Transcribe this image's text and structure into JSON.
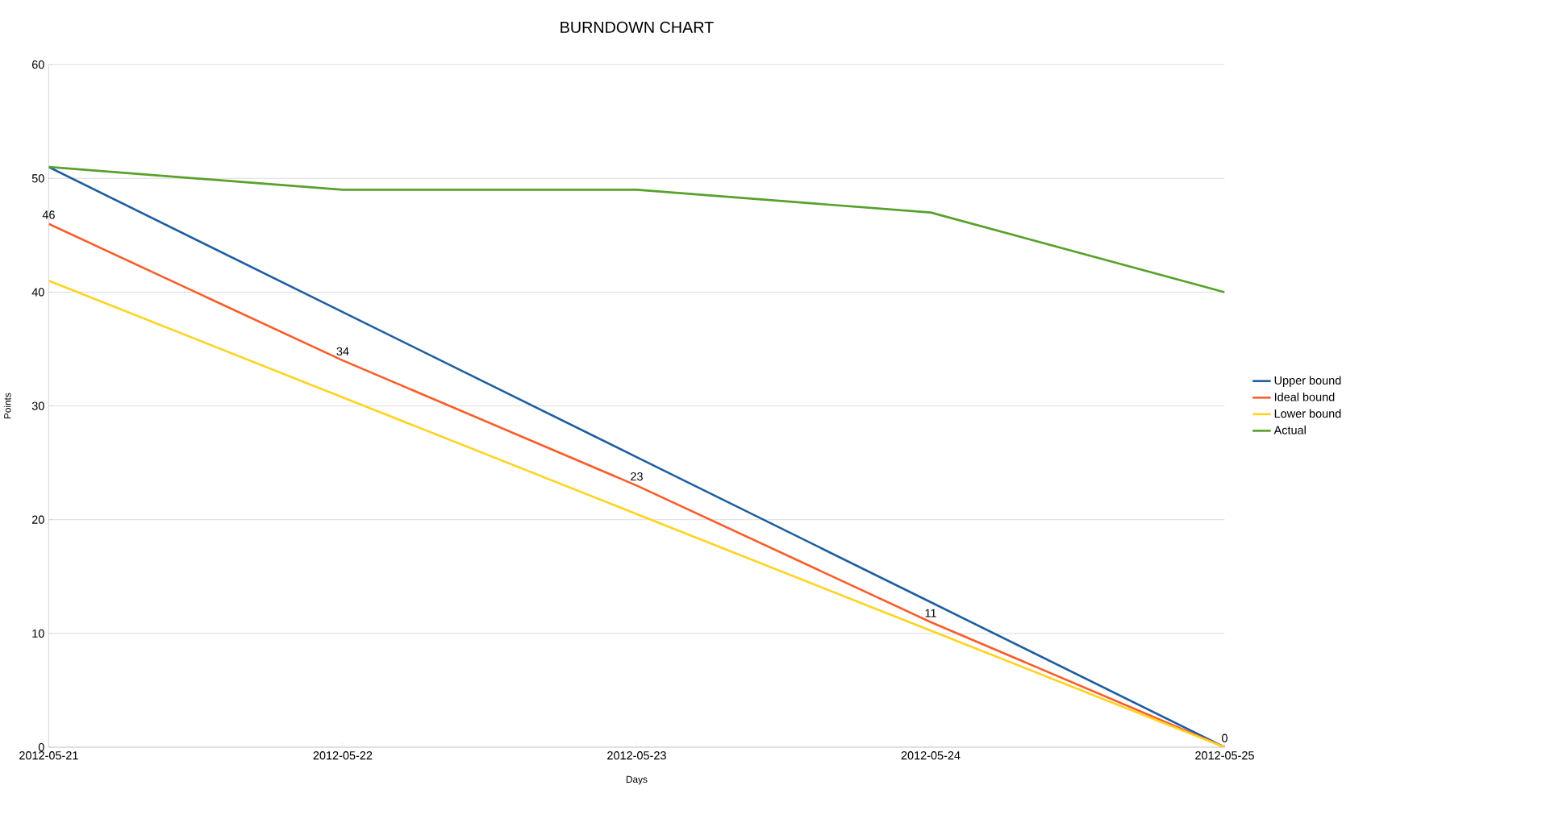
{
  "chart_data": {
    "type": "line",
    "title": "BURNDOWN CHART",
    "xlabel": "Days",
    "ylabel": "Points",
    "categories": [
      "2012-05-21",
      "2012-05-22",
      "2012-05-23",
      "2012-05-24",
      "2012-05-25"
    ],
    "series": [
      {
        "name": "Upper bound",
        "color": "#1f5fa0",
        "values": [
          51,
          38.25,
          25.5,
          12.75,
          0
        ]
      },
      {
        "name": "Ideal bound",
        "color": "#f95d2a",
        "values": [
          46,
          34,
          23,
          11,
          0
        ],
        "value_labels": [
          "46",
          "34",
          "23",
          "11",
          "0"
        ]
      },
      {
        "name": "Lower bound",
        "color": "#ffd320",
        "values": [
          41,
          30.75,
          20.5,
          10.25,
          0
        ]
      },
      {
        "name": "Actual",
        "color": "#58a12a",
        "values": [
          51,
          49,
          49,
          47,
          40
        ]
      }
    ],
    "ylim": [
      0,
      60
    ],
    "yticks": [
      0,
      10,
      20,
      30,
      40,
      50,
      60
    ],
    "grid": "y",
    "legend": "right",
    "marker": "none",
    "line_style": "solid"
  }
}
